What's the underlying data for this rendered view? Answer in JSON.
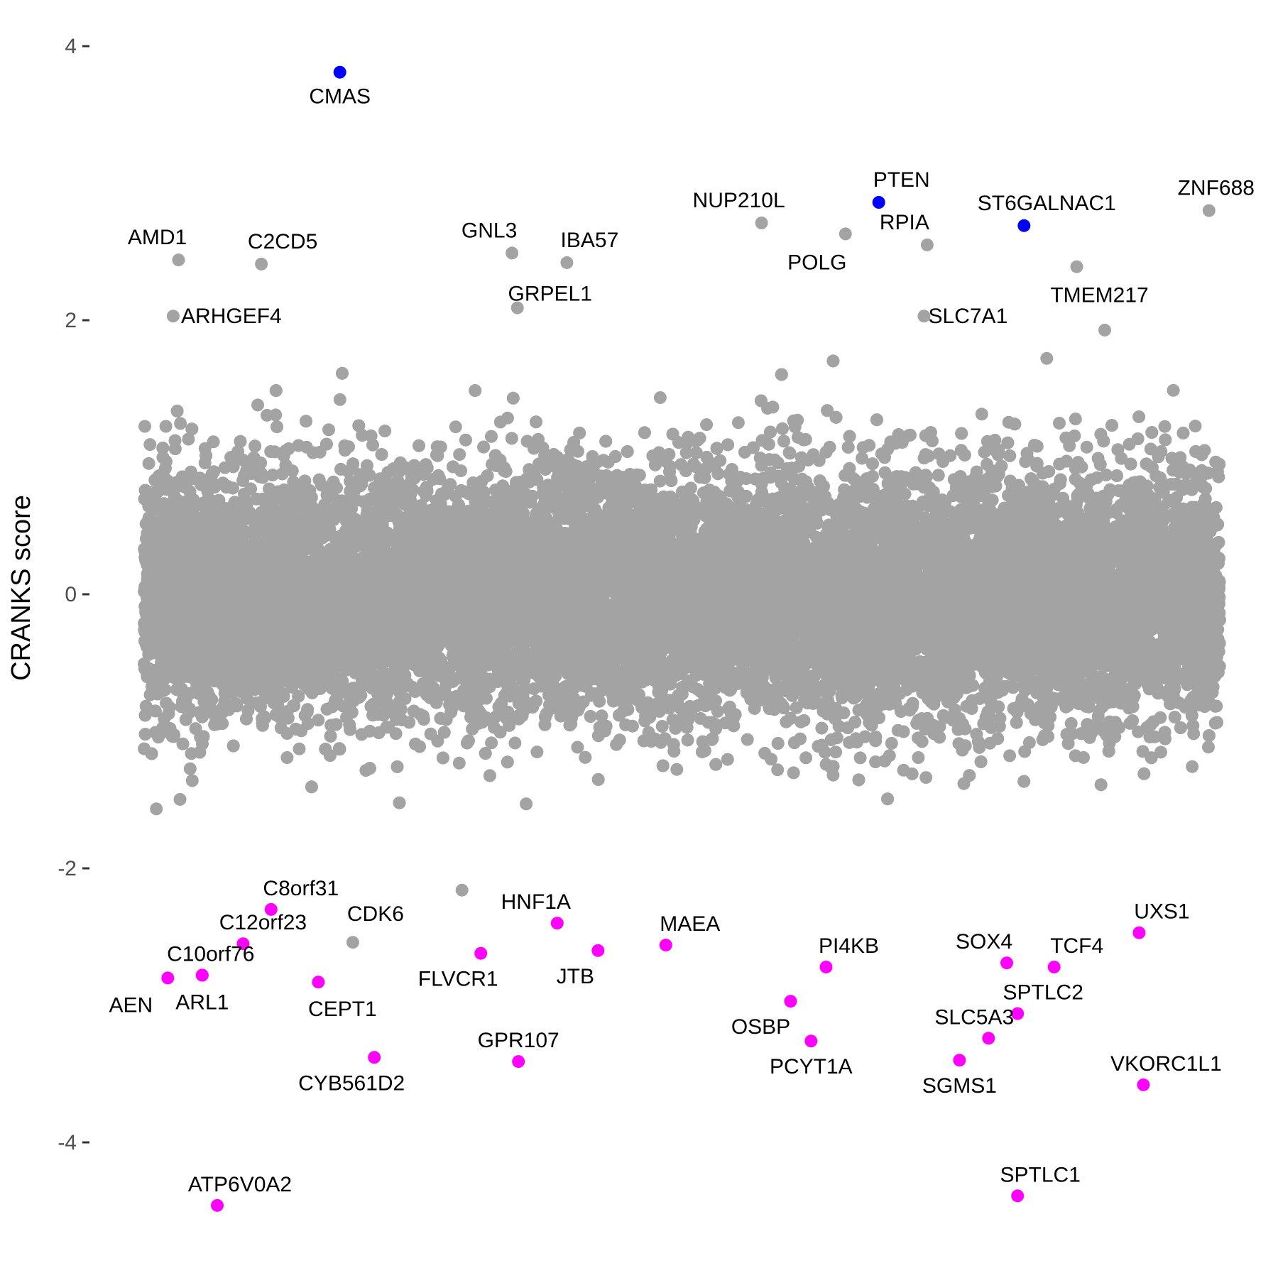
{
  "chart_data": {
    "type": "scatter",
    "title": "",
    "xlabel": "",
    "ylabel": "CRANKS score",
    "xlim": [
      0,
      1
    ],
    "ylim": [
      -4.5,
      4.0
    ],
    "yticks": [
      {
        "value": 4,
        "label": "4"
      },
      {
        "value": 2,
        "label": "2"
      },
      {
        "value": 0,
        "label": "0"
      },
      {
        "value": -2,
        "label": "-2"
      },
      {
        "value": -4,
        "label": "-4"
      }
    ],
    "grid": false,
    "legend": "none",
    "colors": {
      "background": "#a3a3a3",
      "positive": "#0000ff",
      "negative": "#ff00ff"
    },
    "background_points": {
      "count": 18000,
      "y_sd": 0.45,
      "y_min": -2.4,
      "y_max": 2.4
    },
    "highlighted": [
      {
        "label": "CMAS",
        "x": 0.182,
        "y": 3.81,
        "group": "positive"
      },
      {
        "label": "PTEN",
        "x": 0.683,
        "y": 2.86,
        "group": "positive"
      },
      {
        "label": "ST6GALNAC1",
        "x": 0.818,
        "y": 2.69,
        "group": "positive"
      },
      {
        "label": "ZNF688",
        "x": 0.99,
        "y": 2.8,
        "group": "other"
      },
      {
        "label": "NUP210L",
        "x": 0.574,
        "y": 2.71,
        "group": "other"
      },
      {
        "label": "RPIA",
        "x": 0.728,
        "y": 2.55,
        "group": "other"
      },
      {
        "label": "POLG",
        "x": 0.652,
        "y": 2.63,
        "group": "other"
      },
      {
        "label": "TMEM217",
        "x": 0.867,
        "y": 2.39,
        "group": "other"
      },
      {
        "label": "AMD1",
        "x": 0.032,
        "y": 2.44,
        "group": "other"
      },
      {
        "label": "C2CD5",
        "x": 0.109,
        "y": 2.41,
        "group": "other"
      },
      {
        "label": "GNL3",
        "x": 0.342,
        "y": 2.49,
        "group": "other"
      },
      {
        "label": "IBA57",
        "x": 0.393,
        "y": 2.42,
        "group": "other"
      },
      {
        "label": "GRPEL1",
        "x": 0.347,
        "y": 2.09,
        "group": "other"
      },
      {
        "label": "SLC7A1",
        "x": 0.725,
        "y": 2.03,
        "group": "other"
      },
      {
        "label": "ARHGEF4",
        "x": 0.027,
        "y": 2.03,
        "group": "other"
      },
      {
        "label": "C8orf31",
        "x": 0.118,
        "y": -2.3,
        "group": "negative"
      },
      {
        "label": "C12orf23",
        "x": 0.092,
        "y": -2.55,
        "group": "negative"
      },
      {
        "label": "CDK6",
        "x": 0.194,
        "y": -2.54,
        "group": "other"
      },
      {
        "label": "C10orf76",
        "x": 0.054,
        "y": -2.78,
        "group": "negative"
      },
      {
        "label": "AEN",
        "x": 0.022,
        "y": -2.8,
        "group": "negative"
      },
      {
        "label": "ARL1",
        "x": 0.054,
        "y": -2.78,
        "group": "negative"
      },
      {
        "label": "CEPT1",
        "x": 0.162,
        "y": -2.83,
        "group": "negative"
      },
      {
        "label": "CYB561D2",
        "x": 0.214,
        "y": -3.38,
        "group": "negative"
      },
      {
        "label": "HNF1A",
        "x": 0.384,
        "y": -2.4,
        "group": "negative"
      },
      {
        "label": "FLVCR1",
        "x": 0.313,
        "y": -2.62,
        "group": "negative"
      },
      {
        "label": "JTB",
        "x": 0.422,
        "y": -2.6,
        "group": "negative"
      },
      {
        "label": "GPR107",
        "x": 0.348,
        "y": -3.41,
        "group": "negative"
      },
      {
        "label": "MAEA",
        "x": 0.485,
        "y": -2.56,
        "group": "negative"
      },
      {
        "label": "ATP6V0A2",
        "x": 0.068,
        "y": -4.46,
        "group": "negative"
      },
      {
        "label": "PI4KB",
        "x": 0.634,
        "y": -2.72,
        "group": "negative"
      },
      {
        "label": "OSBP",
        "x": 0.601,
        "y": -2.97,
        "group": "negative"
      },
      {
        "label": "PCYT1A",
        "x": 0.62,
        "y": -3.26,
        "group": "negative"
      },
      {
        "label": "SOX4",
        "x": 0.802,
        "y": -2.69,
        "group": "negative"
      },
      {
        "label": "TCF4",
        "x": 0.846,
        "y": -2.72,
        "group": "negative"
      },
      {
        "label": "UXS1",
        "x": 0.925,
        "y": -2.47,
        "group": "negative"
      },
      {
        "label": "SPTLC2",
        "x": 0.812,
        "y": -3.06,
        "group": "negative"
      },
      {
        "label": "SLC5A3",
        "x": 0.785,
        "y": -3.24,
        "group": "negative"
      },
      {
        "label": "SGMS1",
        "x": 0.758,
        "y": -3.4,
        "group": "negative"
      },
      {
        "label": "VKORC1L1",
        "x": 0.929,
        "y": -3.58,
        "group": "negative"
      },
      {
        "label": "SPTLC1",
        "x": 0.812,
        "y": -4.39,
        "group": "negative"
      }
    ]
  }
}
